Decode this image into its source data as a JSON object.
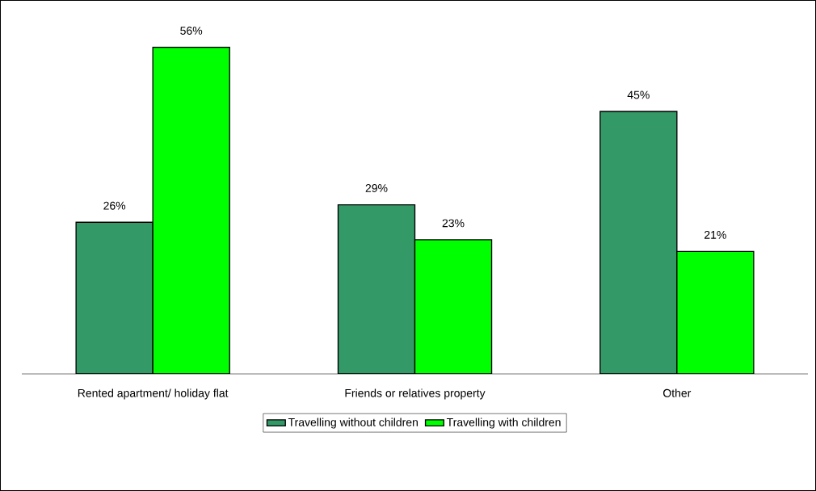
{
  "chart_data": {
    "type": "bar",
    "categories": [
      "Rented apartment/ holiday flat",
      "Friends or relatives property",
      "Other"
    ],
    "series": [
      {
        "name": "Travelling without children",
        "color": "#339966",
        "values": [
          26,
          29,
          45
        ],
        "value_labels": [
          "26%",
          "29%",
          "45%"
        ]
      },
      {
        "name": "Travelling with children",
        "color": "#00ff00",
        "values": [
          56,
          23,
          21
        ],
        "value_labels": [
          "56%",
          "23%",
          "21%"
        ]
      }
    ],
    "legend": "bottom"
  }
}
